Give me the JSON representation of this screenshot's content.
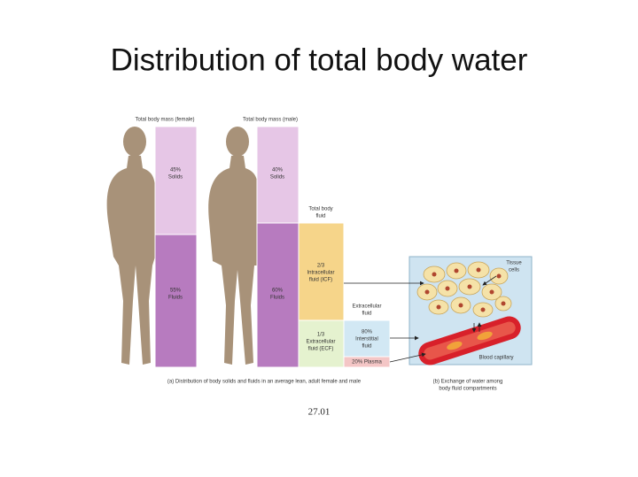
{
  "title": "Distribution of total body water",
  "female": {
    "header": "Total body mass (female)",
    "solids": [
      "45%",
      "Solids"
    ],
    "fluids": [
      "55%",
      "Fluids"
    ]
  },
  "male": {
    "header": "Total body mass (male)",
    "solids": [
      "40%",
      "Solids"
    ],
    "fluids": [
      "60%",
      "Fluids"
    ]
  },
  "total_fluid": {
    "header": [
      "Total body",
      "fluid"
    ],
    "icf": [
      "2/3",
      "Intracellular",
      "fluid (ICF)"
    ],
    "ecf": [
      "1/3",
      "Extracellular",
      "fluid (ECF)"
    ]
  },
  "extracellular": {
    "header": [
      "Extracellular",
      "fluid"
    ],
    "interstitial": [
      "80%",
      "Interstitial",
      "fluid"
    ],
    "plasma": "20% Plasma"
  },
  "panel": {
    "cells": [
      "Tissue",
      "cells"
    ],
    "capillary": "Blood capillary"
  },
  "caption_a": "(a) Distribution of body solids and fluids in an average lean, adult female and male",
  "caption_b": [
    "(b) Exchange of water among",
    "body fluid compartments"
  ],
  "footer": "27.01"
}
